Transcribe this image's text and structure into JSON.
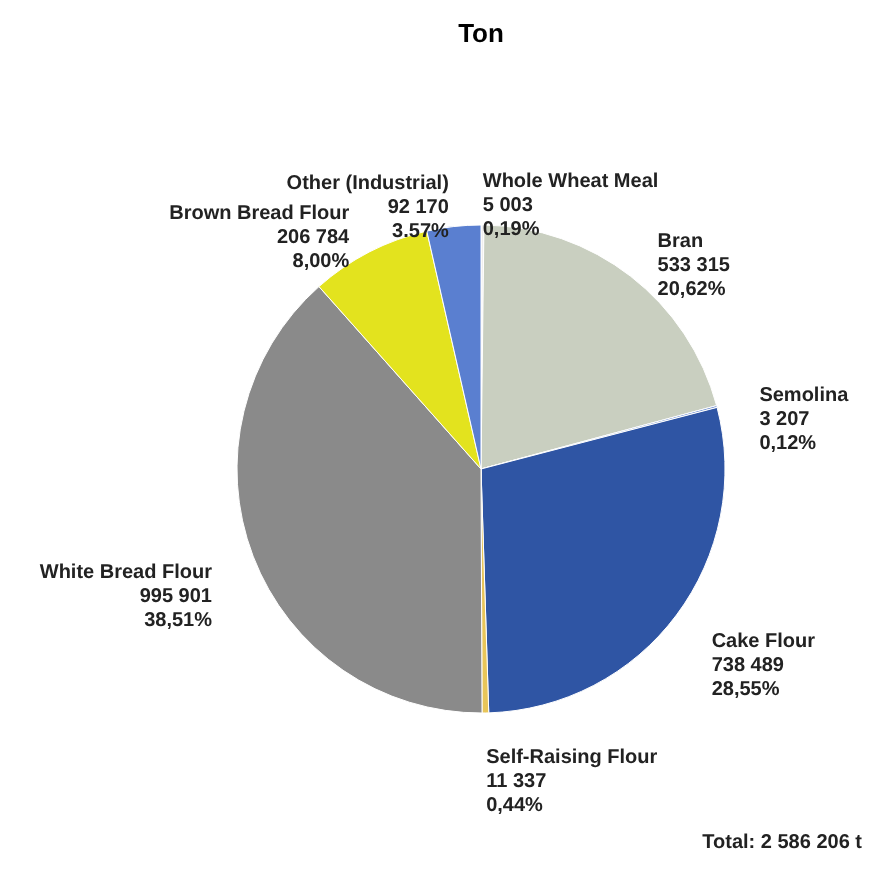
{
  "chart_data": {
    "type": "pie",
    "title": "Ton",
    "categories": [
      "Whole Wheat Meal",
      "Bran",
      "Semolina",
      "Cake Flour",
      "Self-Raising Flour",
      "White Bread Flour",
      "Brown Bread Flour",
      "Other (Industrial)"
    ],
    "values": [
      5003,
      533315,
      3207,
      738489,
      11337,
      995901,
      206784,
      92170
    ],
    "value_labels": [
      "5 003\n0,19%",
      "533 315\n20,62%",
      "3 207\n0,12%",
      "738 489\n28,55%",
      "11 337\n0,44%",
      "995 901\n38,51%",
      "206 784\n8,00%",
      "92 170\n3.57%"
    ],
    "colors": [
      "#eeeeee",
      "#c9cfc0",
      "#6f8fcf",
      "#2f55a4",
      "#e8c55a",
      "#8a8a8a",
      "#e3e31e",
      "#5a7fd0"
    ],
    "annotations": [
      "Total:  2 586 206 t"
    ]
  }
}
